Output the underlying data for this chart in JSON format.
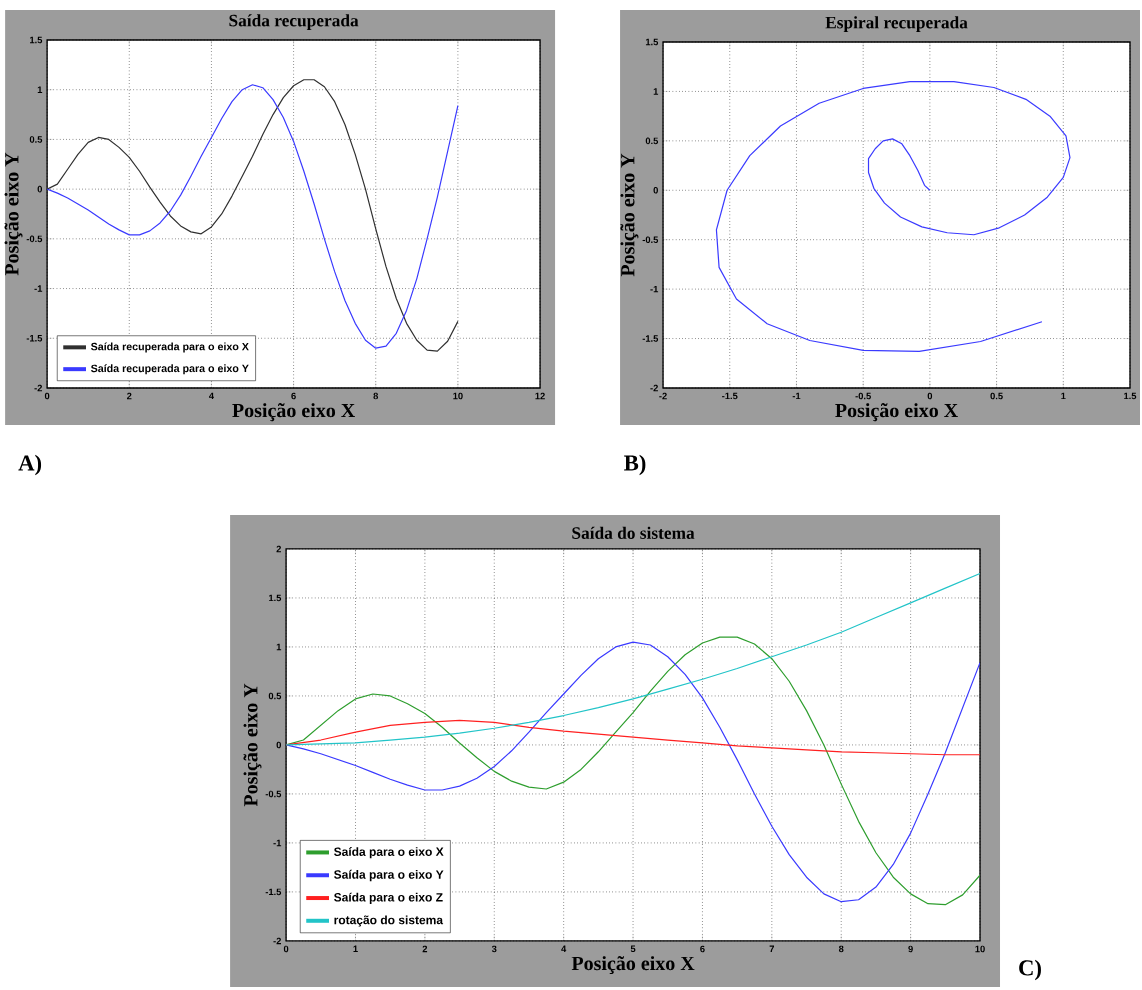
{
  "chart_data": [
    {
      "type": "line",
      "title": "Saída recuperada",
      "xlabel": "Posição eixo X",
      "ylabel": "Posição eixo Y",
      "annotations": [
        "A)"
      ],
      "x": [
        0,
        0.25,
        0.5,
        0.75,
        1,
        1.25,
        1.5,
        1.75,
        2,
        2.25,
        2.5,
        2.75,
        3,
        3.25,
        3.5,
        3.75,
        4,
        4.25,
        4.5,
        4.75,
        5,
        5.25,
        5.5,
        5.75,
        6,
        6.25,
        6.5,
        6.75,
        7,
        7.25,
        7.5,
        7.75,
        8,
        8.25,
        8.5,
        8.75,
        9,
        9.25,
        9.5,
        9.75,
        10
      ],
      "series": [
        {
          "name": "Saída recuperada para o eixo X",
          "color": "#303030",
          "values": [
            0,
            0.05,
            0.2,
            0.35,
            0.47,
            0.52,
            0.5,
            0.42,
            0.32,
            0.18,
            0.02,
            -0.13,
            -0.27,
            -0.37,
            -0.43,
            -0.45,
            -0.38,
            -0.25,
            -0.07,
            0.13,
            0.33,
            0.55,
            0.75,
            0.92,
            1.04,
            1.1,
            1.1,
            1.03,
            0.88,
            0.65,
            0.35,
            0.0,
            -0.4,
            -0.78,
            -1.1,
            -1.35,
            -1.52,
            -1.62,
            -1.63,
            -1.53,
            -1.33
          ]
        },
        {
          "name": "Saída recuperada para o eixo Y",
          "color": "#3a3aff",
          "values": [
            0,
            -0.04,
            -0.09,
            -0.15,
            -0.21,
            -0.28,
            -0.35,
            -0.41,
            -0.46,
            -0.46,
            -0.42,
            -0.34,
            -0.22,
            -0.06,
            0.13,
            0.33,
            0.52,
            0.71,
            0.88,
            1.0,
            1.05,
            1.02,
            0.9,
            0.72,
            0.48,
            0.18,
            -0.15,
            -0.5,
            -0.83,
            -1.12,
            -1.35,
            -1.52,
            -1.6,
            -1.58,
            -1.45,
            -1.22,
            -0.9,
            -0.5,
            -0.08,
            0.38,
            0.84
          ]
        }
      ],
      "xlim": [
        0,
        12
      ],
      "xticks": [
        0,
        2,
        4,
        6,
        8,
        10,
        12
      ],
      "ylim": [
        -2,
        1.5
      ],
      "yticks": [
        -2,
        -1.5,
        -1,
        -0.5,
        0,
        0.5,
        1,
        1.5
      ],
      "grid": true,
      "legend": "bottom left"
    },
    {
      "type": "line",
      "title": "Espiral recuperada",
      "xlabel": "Posição eixo X",
      "ylabel": "Posição eixo Y",
      "annotations": [
        "B)"
      ],
      "series": [
        {
          "color": "#3a3aff",
          "x": [
            0,
            -0.04,
            -0.09,
            -0.15,
            -0.21,
            -0.28,
            -0.35,
            -0.41,
            -0.46,
            -0.46,
            -0.42,
            -0.34,
            -0.22,
            -0.06,
            0.13,
            0.33,
            0.52,
            0.71,
            0.88,
            1.0,
            1.05,
            1.02,
            0.9,
            0.72,
            0.48,
            0.18,
            -0.15,
            -0.5,
            -0.83,
            -1.12,
            -1.35,
            -1.52,
            -1.6,
            -1.58,
            -1.45,
            -1.22,
            -0.9,
            -0.5,
            -0.08,
            0.38,
            0.84
          ],
          "values": [
            0,
            0.05,
            0.2,
            0.35,
            0.47,
            0.52,
            0.5,
            0.42,
            0.32,
            0.18,
            0.02,
            -0.13,
            -0.27,
            -0.37,
            -0.43,
            -0.45,
            -0.38,
            -0.25,
            -0.07,
            0.13,
            0.33,
            0.55,
            0.75,
            0.92,
            1.04,
            1.1,
            1.1,
            1.03,
            0.88,
            0.65,
            0.35,
            0.0,
            -0.4,
            -0.78,
            -1.1,
            -1.35,
            -1.52,
            -1.62,
            -1.63,
            -1.53,
            -1.33
          ]
        }
      ],
      "xlim": [
        -2,
        1.5
      ],
      "xticks": [
        -2,
        -1.5,
        -1,
        -0.5,
        0,
        0.5,
        1,
        1.5
      ],
      "ylim": [
        -2,
        1.5
      ],
      "yticks": [
        -2,
        -1.5,
        -1,
        -0.5,
        0,
        0.5,
        1,
        1.5
      ],
      "grid": true
    },
    {
      "type": "line",
      "title": "Saída do sistema",
      "xlabel": "Posição eixo X",
      "ylabel": "Posição eixo Y",
      "annotations": [
        "C)"
      ],
      "x": [
        0,
        0.25,
        0.5,
        0.75,
        1,
        1.25,
        1.5,
        1.75,
        2,
        2.25,
        2.5,
        2.75,
        3,
        3.25,
        3.5,
        3.75,
        4,
        4.25,
        4.5,
        4.75,
        5,
        5.25,
        5.5,
        5.75,
        6,
        6.25,
        6.5,
        6.75,
        7,
        7.25,
        7.5,
        7.75,
        8,
        8.25,
        8.5,
        8.75,
        9,
        9.25,
        9.5,
        9.75,
        10
      ],
      "series": [
        {
          "name": "Saída para o eixo X",
          "color": "#2e9e2e",
          "values": [
            0,
            0.05,
            0.2,
            0.35,
            0.47,
            0.52,
            0.5,
            0.42,
            0.32,
            0.18,
            0.02,
            -0.13,
            -0.27,
            -0.37,
            -0.43,
            -0.45,
            -0.38,
            -0.25,
            -0.07,
            0.13,
            0.33,
            0.55,
            0.75,
            0.92,
            1.04,
            1.1,
            1.1,
            1.03,
            0.88,
            0.65,
            0.35,
            0.0,
            -0.4,
            -0.78,
            -1.1,
            -1.35,
            -1.52,
            -1.62,
            -1.63,
            -1.53,
            -1.33
          ]
        },
        {
          "name": "Saída para o eixo Y",
          "color": "#3a3aff",
          "values": [
            0,
            -0.04,
            -0.09,
            -0.15,
            -0.21,
            -0.28,
            -0.35,
            -0.41,
            -0.46,
            -0.46,
            -0.42,
            -0.34,
            -0.22,
            -0.06,
            0.13,
            0.33,
            0.52,
            0.71,
            0.88,
            1.0,
            1.05,
            1.02,
            0.9,
            0.72,
            0.48,
            0.18,
            -0.15,
            -0.5,
            -0.83,
            -1.12,
            -1.35,
            -1.52,
            -1.6,
            -1.58,
            -1.45,
            -1.22,
            -0.9,
            -0.5,
            -0.08,
            0.38,
            0.84
          ]
        },
        {
          "name": "Saída para o eixo Z",
          "color": "#ff2020",
          "x": [
            0,
            0.5,
            1,
            1.5,
            2,
            2.5,
            3,
            3.5,
            4,
            4.5,
            5,
            5.5,
            6,
            6.5,
            7,
            7.5,
            8,
            8.5,
            9,
            9.5,
            10
          ],
          "values": [
            0,
            0.05,
            0.13,
            0.2,
            0.23,
            0.25,
            0.23,
            0.18,
            0.14,
            0.11,
            0.08,
            0.05,
            0.02,
            -0.01,
            -0.03,
            -0.05,
            -0.07,
            -0.08,
            -0.09,
            -0.1,
            -0.1
          ]
        },
        {
          "name": "rotação do sistema",
          "color": "#22c4c8",
          "x": [
            0,
            0.5,
            1,
            1.5,
            2,
            2.5,
            3,
            3.5,
            4,
            4.5,
            5,
            5.5,
            6,
            6.5,
            7,
            7.5,
            8,
            8.5,
            9,
            9.5,
            10
          ],
          "values": [
            0,
            0.01,
            0.02,
            0.05,
            0.08,
            0.12,
            0.17,
            0.23,
            0.3,
            0.38,
            0.47,
            0.57,
            0.67,
            0.78,
            0.9,
            1.02,
            1.15,
            1.3,
            1.45,
            1.6,
            1.75
          ]
        }
      ],
      "xlim": [
        0,
        10
      ],
      "xticks": [
        0,
        1,
        2,
        3,
        4,
        5,
        6,
        7,
        8,
        9,
        10
      ],
      "ylim": [
        -2,
        2
      ],
      "yticks": [
        -2,
        -1.5,
        -1,
        -0.5,
        0,
        0.5,
        1,
        1.5,
        2
      ],
      "grid": true,
      "legend": "bottom left"
    }
  ]
}
